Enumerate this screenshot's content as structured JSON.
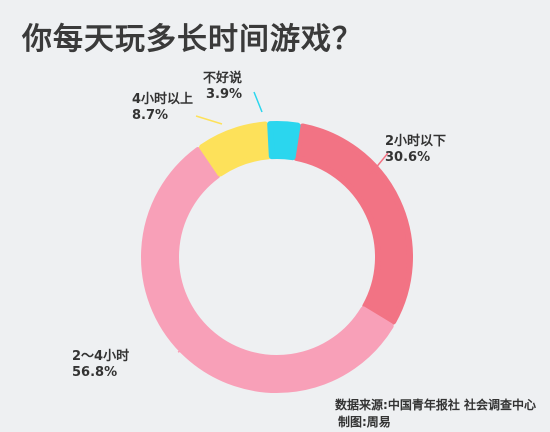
{
  "chart_data": {
    "type": "pie",
    "title": "你每天玩多长时间游戏？",
    "categories": [
      "2小时以下",
      "2～4小时",
      "4小时以上",
      "不好说"
    ],
    "values": [
      30.6,
      56.8,
      8.7,
      3.9
    ],
    "value_labels": [
      "30.6%",
      "56.8%",
      "8.7%",
      "3.9%"
    ],
    "colors": [
      "#f27384",
      "#f8a0b8",
      "#fde15a",
      "#2bd6ee"
    ],
    "donut": true,
    "legend": "none"
  },
  "source": "数据来源:中国青年报社 社会调查中心",
  "credit": "制图:周易"
}
